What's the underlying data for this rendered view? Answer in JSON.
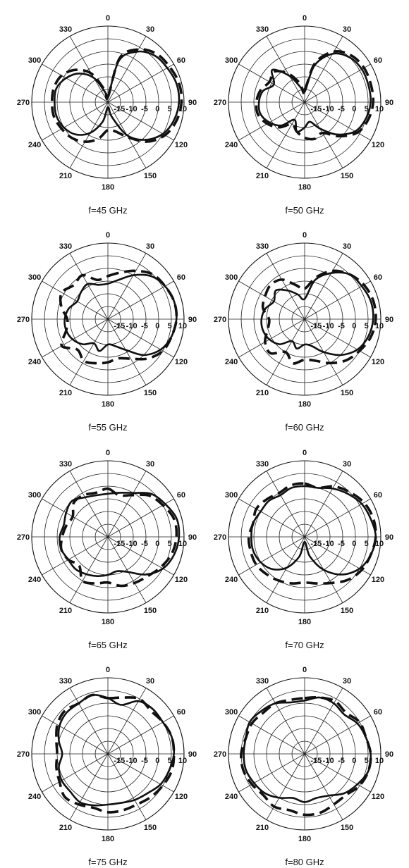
{
  "colors": {
    "line": "#111111",
    "grid": "#222222",
    "background": "#ffffff"
  },
  "chart_data": [
    {
      "type": "polar-line",
      "caption": "f=45 GHz",
      "angle_ticks": [
        "0",
        "30",
        "60",
        "90",
        "120",
        "150",
        "180",
        "210",
        "240",
        "270",
        "300",
        "330"
      ],
      "radial_tick_labels": [
        "-15",
        "-10",
        "-5",
        "0",
        "5",
        "10"
      ],
      "rlim": [
        -20,
        10
      ],
      "grid": true,
      "series": [
        {
          "style": "solid",
          "angles": [
            0,
            15,
            30,
            45,
            60,
            75,
            90,
            105,
            120,
            135,
            150,
            165,
            180,
            195,
            210,
            225,
            240,
            255,
            270,
            285,
            300,
            315,
            330,
            345
          ],
          "values": [
            -18,
            -3,
            3,
            6,
            7,
            8,
            8,
            7,
            5,
            1,
            -5,
            -14,
            -18,
            -12,
            -6,
            -2,
            0,
            1,
            1,
            1,
            -1,
            -4,
            -9,
            -16
          ]
        },
        {
          "style": "dashed",
          "angles": [
            0,
            15,
            30,
            45,
            60,
            75,
            90,
            105,
            120,
            135,
            150,
            165,
            180,
            195,
            210,
            225,
            240,
            255,
            270,
            285,
            300,
            315,
            330,
            345
          ],
          "values": [
            -18,
            -2,
            4,
            7,
            8,
            9,
            9,
            8,
            6,
            2,
            -4,
            -8,
            -9,
            -5,
            -2,
            0,
            1,
            2,
            2,
            2,
            1,
            -2,
            -7,
            -15
          ]
        }
      ]
    },
    {
      "type": "polar-line",
      "caption": "f=50 GHz",
      "angle_ticks": [
        "0",
        "30",
        "60",
        "90",
        "120",
        "150",
        "180",
        "210",
        "240",
        "270",
        "300",
        "330"
      ],
      "radial_tick_labels": [
        "-15",
        "-10",
        "-5",
        "0",
        "5",
        "10"
      ],
      "rlim": [
        -20,
        10
      ],
      "grid": true,
      "series": [
        {
          "style": "solid",
          "angles": [
            0,
            15,
            30,
            45,
            60,
            75,
            90,
            105,
            120,
            135,
            150,
            165,
            180,
            195,
            210,
            225,
            240,
            255,
            270,
            285,
            300,
            315,
            330,
            345
          ],
          "values": [
            -16,
            -5,
            2,
            5,
            6,
            6,
            6,
            5,
            3,
            -2,
            -8,
            -12,
            -10,
            -8,
            -12,
            -7,
            -4,
            -2,
            -2,
            -3,
            -6,
            -2,
            -8,
            -14
          ]
        },
        {
          "style": "dashed",
          "angles": [
            0,
            15,
            30,
            45,
            60,
            75,
            90,
            105,
            120,
            135,
            150,
            165,
            180,
            195,
            210,
            225,
            240,
            255,
            270,
            285,
            300,
            315,
            330,
            345
          ],
          "values": [
            -15,
            -4,
            3,
            6,
            7,
            7,
            7,
            6,
            4,
            -1,
            -6,
            -5,
            -6,
            -8,
            -10,
            -6,
            -3,
            -1,
            -1,
            -2,
            -4,
            -3,
            -7,
            -12
          ]
        }
      ]
    },
    {
      "type": "polar-line",
      "caption": "f=55 GHz",
      "angle_ticks": [
        "0",
        "30",
        "60",
        "90",
        "120",
        "150",
        "180",
        "210",
        "240",
        "270",
        "300",
        "330"
      ],
      "radial_tick_labels": [
        "-15",
        "-10",
        "-5",
        "0",
        "5",
        "10"
      ],
      "rlim": [
        -20,
        10
      ],
      "grid": true,
      "series": [
        {
          "style": "solid",
          "angles": [
            0,
            15,
            30,
            45,
            60,
            75,
            90,
            105,
            120,
            135,
            150,
            165,
            180,
            195,
            210,
            225,
            240,
            255,
            270,
            285,
            300,
            315,
            330,
            345
          ],
          "values": [
            -6,
            -4,
            0,
            4,
            6,
            7,
            7,
            6,
            4,
            0,
            -6,
            -9,
            -10,
            -7,
            -9,
            -6,
            -4,
            -3,
            -3,
            -4,
            -6,
            -5,
            -4,
            -6
          ]
        },
        {
          "style": "dashed",
          "angles": [
            0,
            15,
            30,
            45,
            60,
            75,
            90,
            105,
            120,
            135,
            150,
            165,
            180,
            195,
            210,
            225,
            240,
            255,
            270,
            285,
            300,
            315,
            330,
            345
          ],
          "values": [
            -3,
            -1,
            2,
            5,
            6,
            7,
            7,
            6,
            5,
            2,
            -2,
            -4,
            -3,
            -2,
            -1,
            -3,
            1,
            -3,
            -4,
            -1,
            1,
            -1,
            0,
            -4
          ]
        }
      ]
    },
    {
      "type": "polar-line",
      "caption": "f=60 GHz",
      "angle_ticks": [
        "0",
        "30",
        "60",
        "90",
        "120",
        "150",
        "180",
        "210",
        "240",
        "270",
        "300",
        "330"
      ],
      "radial_tick_labels": [
        "-15",
        "-10",
        "-5",
        "0",
        "5",
        "10"
      ],
      "rlim": [
        -20,
        10
      ],
      "grid": true,
      "series": [
        {
          "style": "solid",
          "angles": [
            0,
            15,
            30,
            45,
            60,
            75,
            90,
            105,
            120,
            135,
            150,
            165,
            180,
            195,
            210,
            225,
            240,
            255,
            270,
            285,
            300,
            315,
            330,
            345
          ],
          "values": [
            -12,
            -4,
            1,
            5,
            6,
            7,
            7,
            6,
            4,
            0,
            -5,
            -9,
            -10,
            -8,
            -10,
            -6,
            -4,
            -3,
            -3,
            -4,
            -6,
            -4,
            -7,
            -10
          ]
        },
        {
          "style": "dashed",
          "angles": [
            0,
            15,
            30,
            45,
            60,
            75,
            90,
            105,
            120,
            135,
            150,
            165,
            180,
            195,
            210,
            225,
            240,
            255,
            270,
            285,
            300,
            315,
            330,
            345
          ],
          "values": [
            -8,
            -3,
            2,
            5,
            7,
            8,
            8,
            7,
            5,
            3,
            0,
            -3,
            -4,
            -2,
            -5,
            -1,
            -2,
            -5,
            -6,
            -3,
            -2,
            -1,
            -2,
            -6
          ]
        }
      ]
    },
    {
      "type": "polar-line",
      "caption": "f=65 GHz",
      "angle_ticks": [
        "0",
        "30",
        "60",
        "90",
        "120",
        "150",
        "180",
        "210",
        "240",
        "270",
        "300",
        "330"
      ],
      "radial_tick_labels": [
        "-15",
        "-10",
        "-5",
        "0",
        "5",
        "10"
      ],
      "rlim": [
        -20,
        10
      ],
      "grid": true,
      "series": [
        {
          "style": "solid",
          "angles": [
            0,
            15,
            30,
            45,
            60,
            75,
            90,
            105,
            120,
            135,
            150,
            165,
            180,
            195,
            210,
            225,
            240,
            255,
            270,
            285,
            300,
            315,
            330,
            345
          ],
          "values": [
            -3,
            -2,
            0,
            4,
            6,
            8,
            8,
            7,
            5,
            1,
            -4,
            -6,
            -5,
            -4,
            -3,
            -2,
            -2,
            -1,
            -1,
            -2,
            -1,
            0,
            -2,
            -3
          ]
        },
        {
          "style": "dashed",
          "angles": [
            0,
            15,
            30,
            45,
            60,
            75,
            90,
            105,
            120,
            135,
            150,
            165,
            180,
            195,
            210,
            225,
            240,
            255,
            270,
            285,
            300,
            315,
            330,
            345
          ],
          "values": [
            -1,
            -3,
            -1,
            3,
            5,
            7,
            7,
            6,
            4,
            2,
            1,
            0,
            -2,
            -1,
            0,
            -4,
            -2,
            -1,
            -2,
            -3,
            -4,
            -1,
            -1,
            -2
          ]
        }
      ]
    },
    {
      "type": "polar-line",
      "caption": "f=70 GHz",
      "angle_ticks": [
        "0",
        "30",
        "60",
        "90",
        "120",
        "150",
        "180",
        "210",
        "240",
        "270",
        "300",
        "330"
      ],
      "radial_tick_labels": [
        "-15",
        "-10",
        "-5",
        "0",
        "5",
        "10"
      ],
      "rlim": [
        -20,
        10
      ],
      "grid": true,
      "series": [
        {
          "style": "solid",
          "angles": [
            0,
            15,
            30,
            45,
            60,
            75,
            90,
            105,
            120,
            135,
            150,
            165,
            180,
            195,
            210,
            225,
            240,
            255,
            270,
            285,
            300,
            315,
            330,
            345
          ],
          "values": [
            0,
            0,
            2,
            4,
            6,
            7,
            8,
            7,
            5,
            1,
            -5,
            -12,
            -18,
            -12,
            -6,
            -2,
            0,
            1,
            1,
            1,
            0,
            0,
            -1,
            0
          ]
        },
        {
          "style": "dashed",
          "angles": [
            0,
            15,
            30,
            45,
            60,
            75,
            90,
            105,
            120,
            135,
            150,
            165,
            180,
            195,
            210,
            225,
            240,
            255,
            270,
            285,
            300,
            315,
            330,
            345
          ],
          "values": [
            1,
            0,
            3,
            5,
            7,
            8,
            8,
            7,
            6,
            4,
            1,
            -1,
            -2,
            -1,
            0,
            1,
            2,
            2,
            2,
            1,
            2,
            1,
            0,
            1
          ]
        }
      ]
    },
    {
      "type": "polar-line",
      "caption": "f=75 GHz",
      "angle_ticks": [
        "0",
        "30",
        "60",
        "90",
        "120",
        "150",
        "180",
        "210",
        "240",
        "270",
        "300",
        "330"
      ],
      "radial_tick_labels": [
        "-15",
        "-10",
        "-5",
        "0",
        "5",
        "10"
      ],
      "rlim": [
        -20,
        10
      ],
      "grid": true,
      "series": [
        {
          "style": "solid",
          "angles": [
            0,
            15,
            30,
            45,
            60,
            75,
            90,
            105,
            120,
            135,
            150,
            165,
            180,
            195,
            210,
            225,
            240,
            255,
            270,
            285,
            300,
            315,
            330,
            345
          ],
          "values": [
            2,
            0,
            4,
            5,
            5,
            6,
            6,
            5,
            4,
            2,
            1,
            0,
            0,
            1,
            2,
            1,
            1,
            0,
            -2,
            0,
            2,
            3,
            3,
            4
          ]
        },
        {
          "style": "dashed",
          "angles": [
            0,
            15,
            30,
            45,
            60,
            75,
            90,
            105,
            120,
            135,
            150,
            165,
            180,
            195,
            210,
            225,
            240,
            255,
            270,
            285,
            300,
            315,
            330,
            345
          ],
          "values": [
            2,
            3,
            5,
            4,
            5,
            6,
            6,
            6,
            5,
            4,
            3,
            3,
            3,
            2,
            3,
            4,
            2,
            1,
            0,
            1,
            3,
            4,
            3,
            4
          ]
        }
      ]
    },
    {
      "type": "polar-line",
      "caption": "f=80 GHz",
      "angle_ticks": [
        "0",
        "30",
        "60",
        "90",
        "120",
        "150",
        "180",
        "210",
        "240",
        "270",
        "300",
        "330"
      ],
      "radial_tick_labels": [
        "-15",
        "-10",
        "-5",
        "0",
        "5",
        "10"
      ],
      "rlim": [
        -20,
        10
      ],
      "grid": true,
      "series": [
        {
          "style": "solid",
          "angles": [
            0,
            15,
            30,
            45,
            60,
            75,
            90,
            105,
            120,
            135,
            150,
            165,
            180,
            195,
            210,
            225,
            240,
            255,
            270,
            285,
            300,
            315,
            330,
            345
          ],
          "values": [
            1,
            3,
            3,
            2,
            4,
            5,
            6,
            6,
            4,
            2,
            -1,
            -2,
            -1,
            -2,
            0,
            2,
            3,
            4,
            4,
            4,
            5,
            4,
            3,
            1
          ]
        },
        {
          "style": "dashed",
          "angles": [
            0,
            15,
            30,
            45,
            60,
            75,
            90,
            105,
            120,
            135,
            150,
            165,
            180,
            195,
            210,
            225,
            240,
            255,
            270,
            285,
            300,
            315,
            330,
            345
          ],
          "values": [
            2,
            3,
            4,
            3,
            5,
            5,
            6,
            6,
            5,
            3,
            3,
            4,
            4,
            3,
            4,
            3,
            4,
            5,
            5,
            4,
            4,
            3,
            3,
            2
          ]
        }
      ]
    }
  ]
}
